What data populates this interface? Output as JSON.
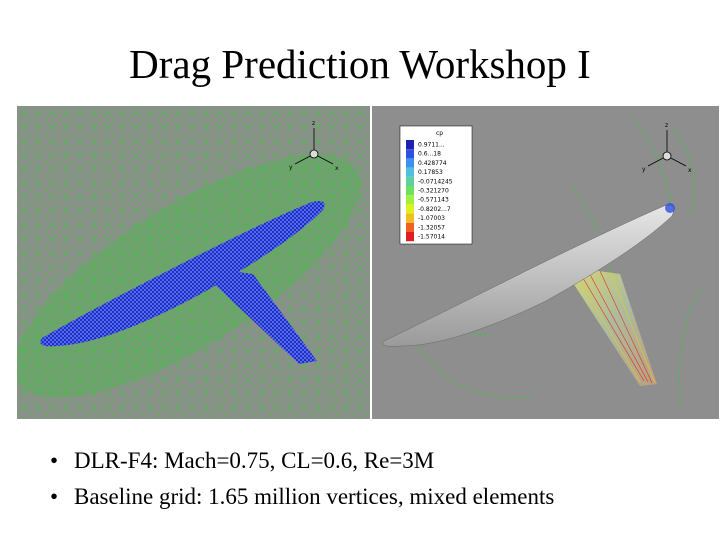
{
  "slide": {
    "title": "Drag Prediction Workshop I"
  },
  "left_panel": {
    "axis_labels": {
      "z": "z",
      "y": "y",
      "x": "x"
    }
  },
  "right_panel": {
    "axis_labels": {
      "z": "z",
      "y": "y",
      "x": "x"
    },
    "legend": {
      "title": "cp",
      "values": [
        "0.9711...",
        "0.6...18",
        "0.428774",
        "0.17853",
        "-0.0714245",
        "-0.321270",
        "-0.571143",
        "-0.8202...7",
        "-1.07003",
        "-1.32057",
        "-1.57014"
      ],
      "colors": [
        "#2020b0",
        "#3050e0",
        "#4090f0",
        "#50c0e0",
        "#60d0a0",
        "#70e060",
        "#a0f040",
        "#e0f020",
        "#f0c020",
        "#f06020",
        "#e02020"
      ]
    }
  },
  "bullets": [
    "DLR-F4: Mach=0.75, CL=0.6, Re=3M",
    "Baseline grid: 1.65 million vertices, mixed elements"
  ],
  "colors": {
    "mesh_green": "#3ec23e",
    "surface_blue": "#1a2fd0",
    "background_gray": "#8e8e8e",
    "surface_gray": "#c8c8c8"
  }
}
